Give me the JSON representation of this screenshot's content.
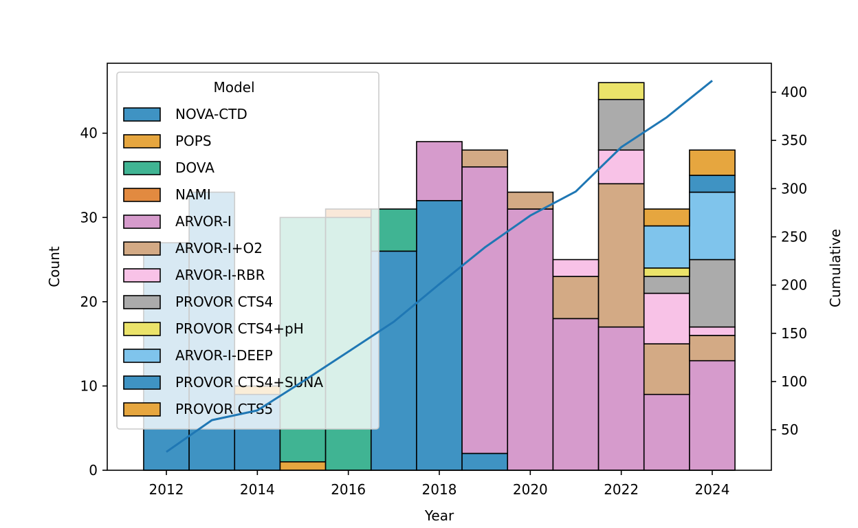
{
  "chart_data": {
    "type": "bar",
    "stacked": true,
    "x": [
      2012,
      2013,
      2014,
      2015,
      2016,
      2017,
      2018,
      2019,
      2020,
      2021,
      2022,
      2023,
      2024
    ],
    "xlabel": "Year",
    "ylabel": "Count",
    "y2label": "Cumulative",
    "xlim": [
      2010.7,
      2025.3
    ],
    "ylim": [
      0,
      48.3
    ],
    "y2lim": [
      8,
      430
    ],
    "xticks": [
      "2012",
      "2014",
      "2016",
      "2018",
      "2020",
      "2022",
      "2024"
    ],
    "yticks": [
      "0",
      "10",
      "20",
      "30",
      "40"
    ],
    "y2ticks": [
      "50",
      "100",
      "150",
      "200",
      "250",
      "300",
      "350",
      "400"
    ],
    "grid": false,
    "legend_title": "Model",
    "legend_position": "top-left",
    "series": [
      {
        "name": "NOVA-CTD",
        "color": "#3f93c3",
        "values": [
          27,
          33,
          9,
          0,
          0,
          26,
          32,
          2,
          0,
          0,
          0,
          0,
          0
        ]
      },
      {
        "name": "POPS",
        "color": "#e6a63f",
        "values": [
          0,
          0,
          1,
          1,
          0,
          0,
          0,
          0,
          0,
          0,
          0,
          0,
          0
        ]
      },
      {
        "name": "DOVA",
        "color": "#40b493",
        "values": [
          0,
          0,
          0,
          29,
          30,
          5,
          0,
          0,
          0,
          0,
          0,
          0,
          0
        ]
      },
      {
        "name": "NAMI",
        "color": "#e28a40",
        "values": [
          0,
          0,
          0,
          0,
          1,
          0,
          0,
          0,
          0,
          0,
          0,
          0,
          0
        ]
      },
      {
        "name": "ARVOR-I",
        "color": "#d69bcc",
        "values": [
          0,
          0,
          0,
          0,
          0,
          0,
          7,
          34,
          31,
          18,
          17,
          9,
          13
        ]
      },
      {
        "name": "ARVOR-I+O2",
        "color": "#d3aa85",
        "values": [
          0,
          0,
          0,
          0,
          0,
          0,
          0,
          2,
          2,
          5,
          17,
          6,
          3
        ]
      },
      {
        "name": "ARVOR-I-RBR",
        "color": "#f8c2e7",
        "values": [
          0,
          0,
          0,
          0,
          0,
          0,
          0,
          0,
          0,
          2,
          4,
          6,
          1
        ]
      },
      {
        "name": "PROVOR CTS4",
        "color": "#ababab",
        "values": [
          0,
          0,
          0,
          0,
          0,
          0,
          0,
          0,
          0,
          0,
          6,
          2,
          8
        ]
      },
      {
        "name": "PROVOR CTS4+pH",
        "color": "#ebe36a",
        "values": [
          0,
          0,
          0,
          0,
          0,
          0,
          0,
          0,
          0,
          0,
          2,
          1,
          0
        ]
      },
      {
        "name": "ARVOR-I-DEEP",
        "color": "#7fc4ec",
        "values": [
          0,
          0,
          0,
          0,
          0,
          0,
          0,
          0,
          0,
          0,
          0,
          5,
          8
        ]
      },
      {
        "name": "PROVOR CTS4+SUNA",
        "color": "#3f93c3",
        "values": [
          0,
          0,
          0,
          0,
          0,
          0,
          0,
          0,
          0,
          0,
          0,
          0,
          2
        ]
      },
      {
        "name": "PROVOR CTS5",
        "color": "#e6a63f",
        "values": [
          0,
          0,
          0,
          0,
          0,
          0,
          0,
          0,
          0,
          0,
          0,
          2,
          3
        ]
      }
    ],
    "cumulative": {
      "color": "#1f77b4",
      "values": [
        27,
        60,
        70,
        100,
        131,
        162,
        201,
        239,
        272,
        297,
        343,
        374,
        412
      ]
    }
  }
}
